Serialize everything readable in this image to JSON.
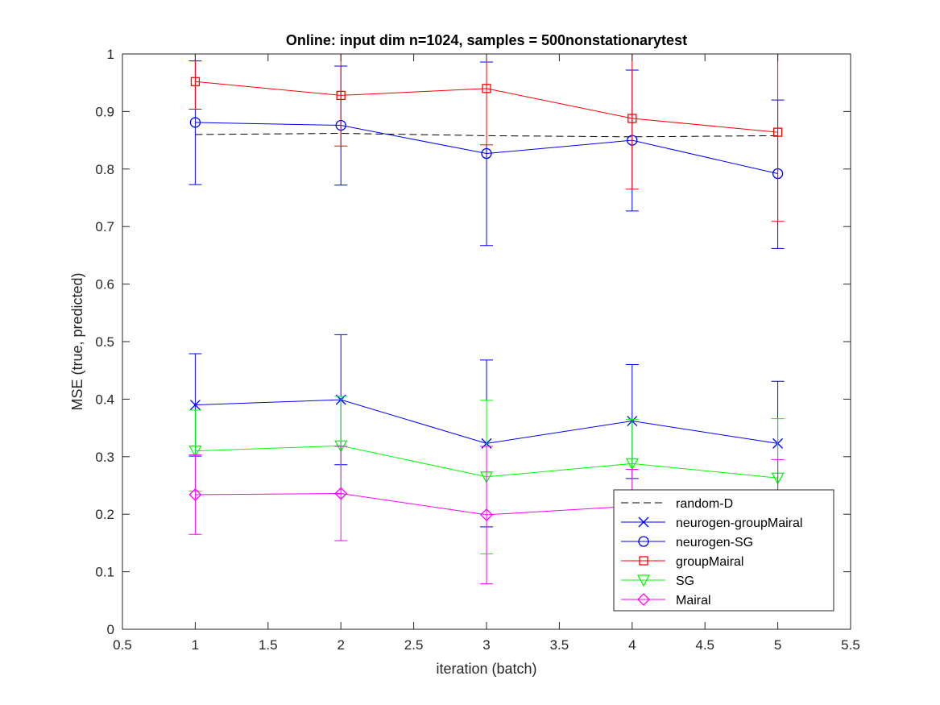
{
  "chart_data": {
    "type": "line",
    "title": "Online:  input dim n=1024, samples = 500nonstationarytest",
    "xlabel": "iteration (batch)",
    "ylabel": "MSE (true, predicted)",
    "xlim": [
      0.5,
      5.5
    ],
    "ylim": [
      0,
      1
    ],
    "xticks": [
      0.5,
      1,
      1.5,
      2,
      2.5,
      3,
      3.5,
      4,
      4.5,
      5,
      5.5
    ],
    "xtick_labels": [
      "0.5",
      "1",
      "1.5",
      "2",
      "2.5",
      "3",
      "3.5",
      "4",
      "4.5",
      "5",
      "5.5"
    ],
    "yticks": [
      0,
      0.1,
      0.2,
      0.3,
      0.4,
      0.5,
      0.6,
      0.7,
      0.8,
      0.9,
      1
    ],
    "ytick_labels": [
      "0",
      "0.1",
      "0.2",
      "0.3",
      "0.4",
      "0.5",
      "0.6",
      "0.7",
      "0.8",
      "0.9",
      "1"
    ],
    "grid": false,
    "legend_position": "bottom-right",
    "x": [
      1,
      2,
      3,
      4,
      5
    ],
    "series": [
      {
        "name": "random-D",
        "color": "#000000",
        "dash": true,
        "marker": "none",
        "values": [
          0.86,
          0.862,
          0.858,
          0.856,
          0.858
        ],
        "err_low": [],
        "err_high": []
      },
      {
        "name": "neurogen-groupMairal",
        "color": "#0000ff",
        "dash": false,
        "marker": "x",
        "values": [
          0.39,
          0.399,
          0.323,
          0.362,
          0.323
        ],
        "err_low": [
          0.301,
          0.286,
          0.178,
          0.262,
          0.214
        ],
        "err_high": [
          0.479,
          0.512,
          0.468,
          0.46,
          0.431
        ]
      },
      {
        "name": "neurogen-SG",
        "color": "#0000ff",
        "dash": false,
        "marker": "circle",
        "values": [
          0.881,
          0.876,
          0.827,
          0.85,
          0.792
        ],
        "err_low": [
          0.773,
          0.772,
          0.667,
          0.727,
          0.662
        ],
        "err_high": [
          0.988,
          0.979,
          0.986,
          0.972,
          0.92
        ]
      },
      {
        "name": "groupMairal",
        "color": "#ff0000",
        "dash": false,
        "marker": "square",
        "values": [
          0.952,
          0.928,
          0.94,
          0.888,
          0.864
        ],
        "err_low": [
          0.904,
          0.84,
          0.842,
          0.765,
          0.709
        ],
        "err_high": [
          1.0,
          1.0,
          1.0,
          1.0,
          1.0
        ]
      },
      {
        "name": "SG",
        "color": "#00ff00",
        "dash": false,
        "marker": "triangle-down",
        "values": [
          0.31,
          0.319,
          0.265,
          0.288,
          0.263
        ],
        "err_low": [
          0.24,
          0.235,
          0.131,
          0.211,
          0.159
        ],
        "err_high": [
          0.381,
          0.405,
          0.398,
          0.365,
          0.366
        ]
      },
      {
        "name": "Mairal",
        "color": "#ff00ff",
        "dash": false,
        "marker": "diamond",
        "values": [
          0.234,
          0.236,
          0.199,
          0.214,
          0.2
        ],
        "err_low": [
          0.165,
          0.154,
          0.079,
          0.15,
          0.105
        ],
        "err_high": [
          0.303,
          0.318,
          0.318,
          0.278,
          0.295
        ]
      }
    ]
  }
}
